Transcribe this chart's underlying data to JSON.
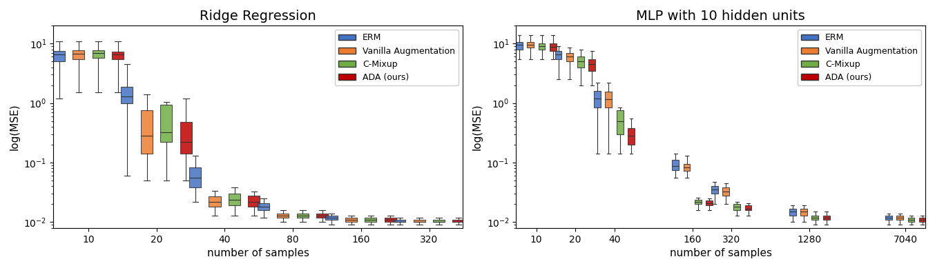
{
  "title_left": "Ridge Regression",
  "title_right": "MLP with 10 hidden units",
  "ylabel": "log(MSE)",
  "xlabel": "number of samples",
  "colors": {
    "ERM": "#4472C4",
    "Vanilla Augmentation": "#ED7D31",
    "C-Mixup": "#70AD47",
    "ADA (ours)": "#C00000"
  },
  "legend_labels": [
    "ERM",
    "Vanilla Augmentation",
    "C-Mixup",
    "ADA (ours)"
  ],
  "ridge_x_ticks": [
    10,
    20,
    40,
    80,
    160,
    320
  ],
  "mlp_x_ticks": [
    10,
    20,
    40,
    160,
    320,
    1280,
    7040
  ],
  "ylim_ridge": [
    0.008,
    20
  ],
  "ylim_mlp": [
    0.008,
    20
  ],
  "ridge_data": {
    "10": {
      "ERM": {
        "q1": 5.0,
        "med": 6.5,
        "q3": 7.5,
        "whislo": 1.2,
        "whishi": 11.0
      },
      "Vanilla Augmentation": {
        "q1": 5.5,
        "med": 6.8,
        "q3": 7.8,
        "whislo": 1.5,
        "whishi": 11.0
      },
      "C-Mixup": {
        "q1": 5.8,
        "med": 7.0,
        "q3": 7.8,
        "whislo": 1.5,
        "whishi": 11.0
      },
      "ADA (ours)": {
        "q1": 5.5,
        "med": 6.5,
        "q3": 7.3,
        "whislo": 1.5,
        "whishi": 11.0
      }
    },
    "20": {
      "ERM": {
        "q1": 1.0,
        "med": 1.3,
        "q3": 1.9,
        "whislo": 0.06,
        "whishi": 4.5
      },
      "Vanilla Augmentation": {
        "q1": 0.14,
        "med": 0.28,
        "q3": 0.75,
        "whislo": 0.05,
        "whishi": 1.4
      },
      "C-Mixup": {
        "q1": 0.22,
        "med": 0.32,
        "q3": 0.95,
        "whislo": 0.05,
        "whishi": 1.05
      },
      "ADA (ours)": {
        "q1": 0.14,
        "med": 0.22,
        "q3": 0.48,
        "whislo": 0.05,
        "whishi": 1.2
      }
    },
    "40": {
      "ERM": {
        "q1": 0.038,
        "med": 0.055,
        "q3": 0.082,
        "whislo": 0.022,
        "whishi": 0.13
      },
      "Vanilla Augmentation": {
        "q1": 0.018,
        "med": 0.022,
        "q3": 0.027,
        "whislo": 0.013,
        "whishi": 0.034
      },
      "C-Mixup": {
        "q1": 0.019,
        "med": 0.024,
        "q3": 0.03,
        "whislo": 0.013,
        "whishi": 0.038
      },
      "ADA (ours)": {
        "q1": 0.018,
        "med": 0.022,
        "q3": 0.028,
        "whislo": 0.013,
        "whishi": 0.033
      }
    },
    "80": {
      "ERM": {
        "q1": 0.016,
        "med": 0.018,
        "q3": 0.021,
        "whislo": 0.012,
        "whishi": 0.025
      },
      "Vanilla Augmentation": {
        "q1": 0.012,
        "med": 0.013,
        "q3": 0.014,
        "whislo": 0.01,
        "whishi": 0.016
      },
      "C-Mixup": {
        "q1": 0.012,
        "med": 0.013,
        "q3": 0.014,
        "whislo": 0.01,
        "whishi": 0.016
      },
      "ADA (ours)": {
        "q1": 0.012,
        "med": 0.013,
        "q3": 0.014,
        "whislo": 0.01,
        "whishi": 0.016
      }
    },
    "160": {
      "ERM": {
        "q1": 0.011,
        "med": 0.012,
        "q3": 0.013,
        "whislo": 0.009,
        "whishi": 0.014
      },
      "Vanilla Augmentation": {
        "q1": 0.01,
        "med": 0.011,
        "q3": 0.012,
        "whislo": 0.009,
        "whishi": 0.013
      },
      "C-Mixup": {
        "q1": 0.01,
        "med": 0.011,
        "q3": 0.012,
        "whislo": 0.009,
        "whishi": 0.013
      },
      "ADA (ours)": {
        "q1": 0.01,
        "med": 0.011,
        "q3": 0.012,
        "whislo": 0.009,
        "whishi": 0.013
      }
    },
    "320": {
      "ERM": {
        "q1": 0.01,
        "med": 0.01,
        "q3": 0.011,
        "whislo": 0.009,
        "whishi": 0.012
      },
      "Vanilla Augmentation": {
        "q1": 0.01,
        "med": 0.01,
        "q3": 0.011,
        "whislo": 0.009,
        "whishi": 0.012
      },
      "C-Mixup": {
        "q1": 0.01,
        "med": 0.01,
        "q3": 0.011,
        "whislo": 0.009,
        "whishi": 0.012
      },
      "ADA (ours)": {
        "q1": 0.01,
        "med": 0.01,
        "q3": 0.011,
        "whislo": 0.009,
        "whishi": 0.012
      }
    }
  },
  "mlp_data": {
    "10": {
      "ERM": {
        "q1": 8.0,
        "med": 9.5,
        "q3": 10.5,
        "whislo": 5.5,
        "whishi": 14.0
      },
      "Vanilla Augmentation": {
        "q1": 8.5,
        "med": 9.5,
        "q3": 10.5,
        "whislo": 5.5,
        "whishi": 14.0
      },
      "C-Mixup": {
        "q1": 8.0,
        "med": 9.0,
        "q3": 10.0,
        "whislo": 5.5,
        "whishi": 14.0
      },
      "ADA (ours)": {
        "q1": 7.5,
        "med": 8.8,
        "q3": 10.0,
        "whislo": 5.5,
        "whishi": 14.0
      }
    },
    "20": {
      "ERM": {
        "q1": 5.5,
        "med": 6.5,
        "q3": 7.5,
        "whislo": 2.5,
        "whishi": 9.0
      },
      "Vanilla Augmentation": {
        "q1": 5.0,
        "med": 6.0,
        "q3": 7.0,
        "whislo": 2.5,
        "whishi": 8.5
      },
      "C-Mixup": {
        "q1": 4.0,
        "med": 5.0,
        "q3": 6.0,
        "whislo": 2.0,
        "whishi": 8.0
      },
      "ADA (ours)": {
        "q1": 3.5,
        "med": 4.5,
        "q3": 5.5,
        "whislo": 2.0,
        "whishi": 7.5
      }
    },
    "40": {
      "ERM": {
        "q1": 0.85,
        "med": 1.2,
        "q3": 1.6,
        "whislo": 0.14,
        "whishi": 2.2
      },
      "Vanilla Augmentation": {
        "q1": 0.85,
        "med": 1.15,
        "q3": 1.55,
        "whislo": 0.14,
        "whishi": 2.2
      },
      "C-Mixup": {
        "q1": 0.3,
        "med": 0.5,
        "q3": 0.75,
        "whislo": 0.14,
        "whishi": 0.85
      },
      "ADA (ours)": {
        "q1": 0.2,
        "med": 0.28,
        "q3": 0.38,
        "whislo": 0.14,
        "whishi": 0.55
      }
    },
    "160": {
      "ERM": {
        "q1": 0.075,
        "med": 0.088,
        "q3": 0.11,
        "whislo": 0.055,
        "whishi": 0.14
      },
      "Vanilla Augmentation": {
        "q1": 0.072,
        "med": 0.082,
        "q3": 0.095,
        "whislo": 0.055,
        "whishi": 0.13
      },
      "C-Mixup": {
        "q1": 0.02,
        "med": 0.022,
        "q3": 0.024,
        "whislo": 0.016,
        "whishi": 0.026
      },
      "ADA (ours)": {
        "q1": 0.019,
        "med": 0.021,
        "q3": 0.023,
        "whislo": 0.016,
        "whishi": 0.025
      }
    },
    "320": {
      "ERM": {
        "q1": 0.03,
        "med": 0.035,
        "q3": 0.04,
        "whislo": 0.02,
        "whishi": 0.048
      },
      "Vanilla Augmentation": {
        "q1": 0.028,
        "med": 0.033,
        "q3": 0.038,
        "whislo": 0.02,
        "whishi": 0.045
      },
      "C-Mixup": {
        "q1": 0.016,
        "med": 0.018,
        "q3": 0.02,
        "whislo": 0.013,
        "whishi": 0.022
      },
      "ADA (ours)": {
        "q1": 0.016,
        "med": 0.017,
        "q3": 0.019,
        "whislo": 0.013,
        "whishi": 0.021
      }
    },
    "1280": {
      "ERM": {
        "q1": 0.013,
        "med": 0.015,
        "q3": 0.017,
        "whislo": 0.01,
        "whishi": 0.019
      },
      "Vanilla Augmentation": {
        "q1": 0.013,
        "med": 0.015,
        "q3": 0.017,
        "whislo": 0.01,
        "whishi": 0.019
      },
      "C-Mixup": {
        "q1": 0.011,
        "med": 0.012,
        "q3": 0.013,
        "whislo": 0.009,
        "whishi": 0.015
      },
      "ADA (ours)": {
        "q1": 0.011,
        "med": 0.012,
        "q3": 0.013,
        "whislo": 0.009,
        "whishi": 0.015
      }
    },
    "7040": {
      "ERM": {
        "q1": 0.011,
        "med": 0.012,
        "q3": 0.013,
        "whislo": 0.009,
        "whishi": 0.014
      },
      "Vanilla Augmentation": {
        "q1": 0.011,
        "med": 0.012,
        "q3": 0.013,
        "whislo": 0.009,
        "whishi": 0.014
      },
      "C-Mixup": {
        "q1": 0.01,
        "med": 0.011,
        "q3": 0.012,
        "whislo": 0.009,
        "whishi": 0.013
      },
      "ADA (ours)": {
        "q1": 0.01,
        "med": 0.011,
        "q3": 0.012,
        "whislo": 0.009,
        "whishi": 0.013
      }
    }
  }
}
